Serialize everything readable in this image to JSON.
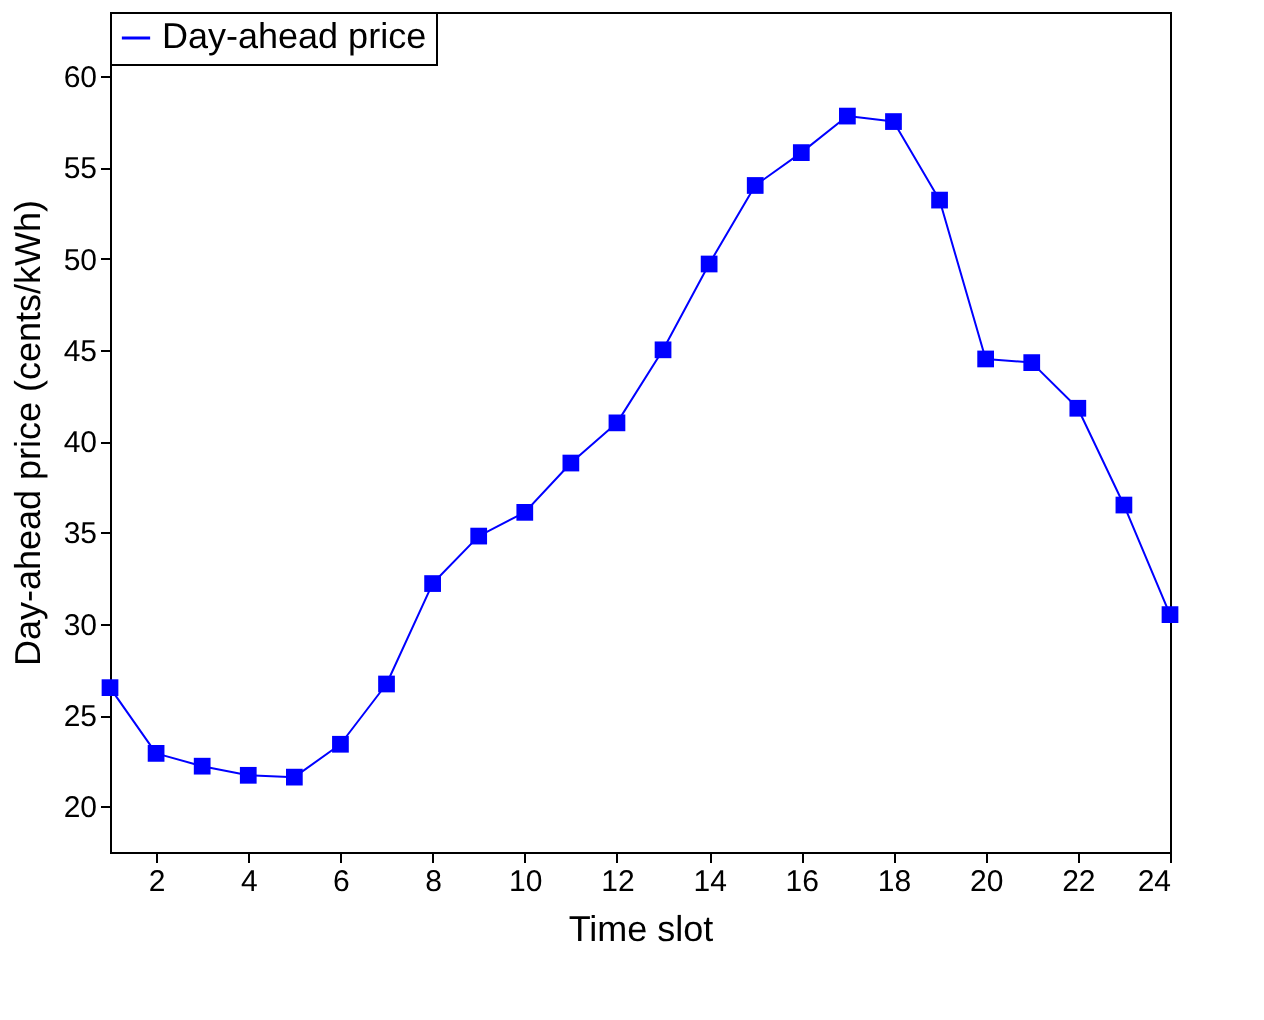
{
  "chart_data": {
    "type": "line",
    "xlabel": "Time slot",
    "ylabel": "Day-ahead price (cents/kWh)",
    "x": [
      1,
      2,
      3,
      4,
      5,
      6,
      7,
      8,
      9,
      10,
      11,
      12,
      13,
      14,
      15,
      16,
      17,
      18,
      19,
      20,
      21,
      22,
      23,
      24
    ],
    "series": [
      {
        "name": "Day-ahead price",
        "color": "#0000ff",
        "values": [
          26.5,
          22.9,
          22.2,
          21.7,
          21.6,
          23.4,
          26.7,
          32.2,
          34.8,
          36.1,
          38.8,
          41.0,
          45.0,
          49.7,
          54.0,
          55.8,
          57.8,
          57.5,
          53.2,
          44.5,
          44.3,
          41.8,
          36.5,
          30.5
        ]
      }
    ],
    "xlim": [
      1,
      24
    ],
    "xticks": [
      2,
      4,
      6,
      8,
      10,
      12,
      14,
      16,
      18,
      20,
      22,
      24
    ],
    "ylim": [
      17.5,
      63.5
    ],
    "yticks": [
      20,
      25,
      30,
      35,
      40,
      45,
      50,
      55,
      60
    ],
    "marker": "square",
    "line_style": "solid",
    "legend": "top left",
    "grid": false
  }
}
